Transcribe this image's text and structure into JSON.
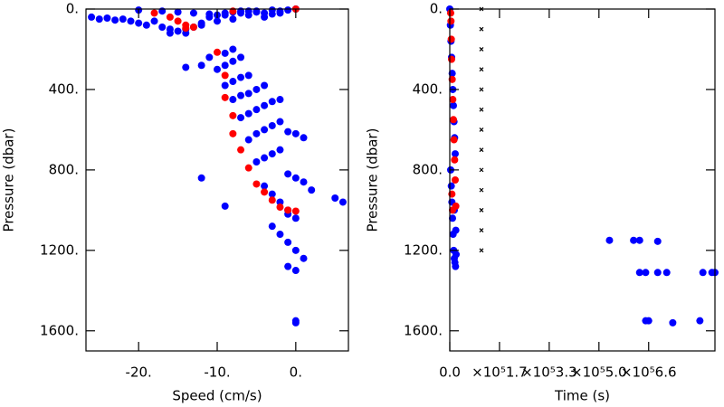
{
  "chart_data": [
    {
      "type": "scatter",
      "x_label": "Speed (cm/s)",
      "y_label": "Pressure (dbar)",
      "xlim": [
        -26.7,
        6.7
      ],
      "ylim": [
        0,
        1700
      ],
      "invert_y": true,
      "xticks": [
        {
          "value": -20,
          "label": "-20."
        },
        {
          "value": -10,
          "label": "-10."
        },
        {
          "value": 0,
          "label": "0."
        }
      ],
      "yticks": [
        {
          "value": 0,
          "label": "0."
        },
        {
          "value": 400,
          "label": "400."
        },
        {
          "value": 800,
          "label": "800."
        },
        {
          "value": 1200,
          "label": "1200."
        },
        {
          "value": 1600,
          "label": "1600."
        }
      ],
      "series": [
        {
          "color": "#0000ff",
          "marker": "circle",
          "x": [
            -26,
            -25,
            -24,
            -23,
            -22,
            -21,
            -20,
            -19,
            -18,
            -17,
            -16,
            -15,
            -14,
            -13,
            -12,
            -11,
            -10,
            -9,
            -8,
            -7,
            -6,
            -5,
            -4,
            -3,
            -2,
            -1,
            0,
            -20,
            -17,
            -15,
            -13,
            -11,
            -9,
            -7,
            -5,
            -3,
            -16,
            -14,
            -12,
            -10,
            -8,
            -6,
            -4,
            -2,
            -12,
            -11,
            -9,
            -8,
            -10,
            -9,
            -8,
            -7,
            -9,
            -8,
            -7,
            -6,
            -8,
            -7,
            -6,
            -5,
            -4,
            -7,
            -6,
            -5,
            -4,
            -3,
            -2,
            -6,
            -5,
            -4,
            -3,
            -2,
            -1,
            0,
            1,
            -5,
            -4,
            -3,
            -2,
            -1,
            0,
            1,
            2,
            5,
            6,
            -4,
            -3,
            -2,
            -1,
            0,
            -3,
            -2,
            -1,
            0,
            1,
            -1,
            0,
            0,
            0,
            -1,
            -14,
            -12,
            -9
          ],
          "values": [
            40,
            50,
            45,
            55,
            50,
            60,
            70,
            80,
            60,
            90,
            100,
            110,
            120,
            90,
            70,
            40,
            30,
            20,
            15,
            10,
            10,
            15,
            20,
            25,
            10,
            5,
            0,
            5,
            10,
            15,
            20,
            25,
            30,
            20,
            10,
            5,
            120,
            100,
            80,
            60,
            50,
            30,
            40,
            20,
            280,
            240,
            220,
            200,
            300,
            280,
            260,
            240,
            380,
            360,
            340,
            330,
            450,
            430,
            420,
            400,
            380,
            540,
            520,
            500,
            480,
            460,
            450,
            650,
            620,
            600,
            580,
            560,
            610,
            620,
            640,
            760,
            740,
            720,
            700,
            820,
            840,
            860,
            900,
            940,
            960,
            880,
            920,
            960,
            1000,
            1040,
            1080,
            1120,
            1160,
            1200,
            1240,
            1280,
            1300,
            1550,
            1560,
            1020,
            290,
            840,
            980
          ]
        },
        {
          "color": "#ff0000",
          "marker": "circle",
          "x": [
            -18,
            -16,
            -15,
            -14,
            -14,
            -13,
            -8,
            0,
            -10,
            -9,
            -9,
            -8,
            -8,
            -7,
            -6,
            -5,
            -4,
            -3,
            -2,
            -1,
            0
          ],
          "values": [
            20,
            40,
            60,
            80,
            95,
            90,
            10,
            0,
            215,
            330,
            440,
            530,
            620,
            700,
            790,
            870,
            910,
            950,
            985,
            1000,
            1005
          ]
        }
      ]
    },
    {
      "type": "scatter",
      "x_label": "Time (s)",
      "y_label": "Pressure (dbar)",
      "xlim": [
        0,
        880000
      ],
      "ylim": [
        0,
        1700
      ],
      "invert_y": true,
      "xticks": [
        {
          "value": 0,
          "label": "0.0"
        },
        {
          "value": 165000,
          "label": "×10⁵1.7"
        },
        {
          "value": 330000,
          "label": "×10⁵3.3"
        },
        {
          "value": 495000,
          "label": "×10⁵5.0"
        },
        {
          "value": 660000,
          "label": "×10⁵6.6"
        }
      ],
      "yticks": [
        {
          "value": 0,
          "label": "0."
        },
        {
          "value": 400,
          "label": "400."
        },
        {
          "value": 800,
          "label": "800."
        },
        {
          "value": 1200,
          "label": "1200."
        },
        {
          "value": 1600,
          "label": "1600."
        }
      ],
      "series": [
        {
          "color": "#0000ff",
          "marker": "circle",
          "x": [
            0,
            2000,
            4000,
            6000,
            8000,
            10000,
            12000,
            14000,
            16000,
            18000,
            3000,
            5000,
            7000,
            9000,
            11000,
            13000,
            15000,
            17000,
            19000,
            21000,
            20000,
            15000,
            530000,
            610000,
            630000,
            690000,
            630000,
            650000,
            690000,
            720000,
            840000,
            870000,
            880000,
            650000,
            660000,
            740000,
            830000
          ],
          "values": [
            0,
            80,
            160,
            240,
            320,
            400,
            480,
            560,
            640,
            720,
            800,
            880,
            960,
            1040,
            1120,
            1200,
            1240,
            1260,
            1280,
            1220,
            1100,
            1000,
            1150,
            1150,
            1150,
            1155,
            1310,
            1310,
            1310,
            1310,
            1310,
            1310,
            1310,
            1550,
            1550,
            1560,
            1550
          ]
        },
        {
          "color": "#ff0000",
          "marker": "circle",
          "x": [
            3000,
            4000,
            5000,
            6000,
            8000,
            10000,
            12000,
            14000,
            16000,
            18000,
            20000,
            7000,
            9000
          ],
          "values": [
            20,
            60,
            150,
            250,
            350,
            450,
            550,
            650,
            750,
            850,
            980,
            920,
            1000
          ]
        },
        {
          "color": "#000000",
          "marker": "x",
          "x": [
            105000,
            105000,
            105000,
            105000,
            105000,
            105000,
            105000,
            105000,
            105000,
            105000,
            105000,
            105000,
            105000
          ],
          "values": [
            0,
            100,
            200,
            300,
            400,
            500,
            600,
            700,
            800,
            900,
            1000,
            1100,
            1200
          ]
        }
      ]
    }
  ]
}
